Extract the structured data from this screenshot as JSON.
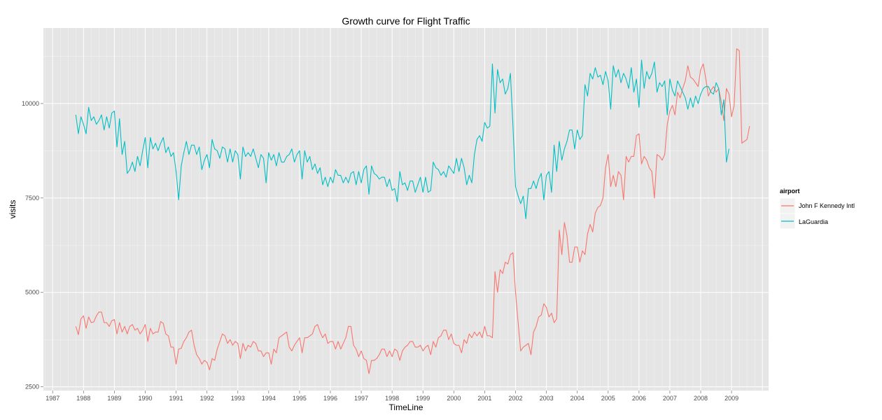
{
  "chart_data": {
    "type": "line",
    "title": "Growth curve for Flight Traffic",
    "xlabel": "TimeLine",
    "ylabel": "visits",
    "xlim": [
      1986.7,
      2010.2
    ],
    "ylim": [
      2400,
      12000
    ],
    "x_ticks": [
      1987,
      1988,
      1989,
      1990,
      1991,
      1992,
      1993,
      1994,
      1995,
      1996,
      1997,
      1998,
      1999,
      2000,
      2001,
      2002,
      2003,
      2004,
      2005,
      2006,
      2007,
      2008,
      2009
    ],
    "y_ticks": [
      2500,
      5000,
      7500,
      10000
    ],
    "grid": true,
    "legend": {
      "title": "airport",
      "position": "right"
    },
    "series": [
      {
        "name": "John F Kennedy Intl",
        "color": "#F8766D",
        "x_start": 1987.75,
        "step": 0.0833333,
        "values": [
          4100,
          3880,
          4300,
          4380,
          4050,
          4350,
          4200,
          4220,
          4380,
          4480,
          4480,
          4200,
          4200,
          4100,
          4250,
          4280,
          3900,
          4200,
          3950,
          4100,
          3900,
          4100,
          4150,
          4000,
          4050,
          3900,
          4000,
          4150,
          3700,
          4050,
          3900,
          3950,
          3950,
          4230,
          4180,
          3900,
          3850,
          3550,
          3550,
          3100,
          3500,
          3520,
          3700,
          3800,
          3950,
          4000,
          3600,
          3350,
          3250,
          3100,
          3200,
          3150,
          2950,
          3250,
          3200,
          3500,
          3700,
          3900,
          3850,
          3650,
          3750,
          3600,
          3700,
          3650,
          3250,
          3650,
          3450,
          3600,
          3550,
          3700,
          3650,
          3450,
          3450,
          3300,
          3400,
          3400,
          3100,
          3500,
          3400,
          3800,
          3850,
          3900,
          3950,
          3550,
          3450,
          3600,
          3700,
          3800,
          3400,
          3800,
          3800,
          3850,
          3900,
          4100,
          4150,
          3950,
          3800,
          3900,
          3650,
          3700,
          3700,
          3500,
          3700,
          3500,
          3650,
          3800,
          4100,
          4100,
          3600,
          3500,
          3300,
          3450,
          3250,
          3200,
          2850,
          3200,
          3200,
          3250,
          3350,
          3500,
          3500,
          3300,
          3450,
          3300,
          3500,
          3450,
          3200,
          3450,
          3550,
          3600,
          3700,
          3700,
          3550,
          3550,
          3600,
          3450,
          3550,
          3600,
          3350,
          3700,
          3550,
          3800,
          3850,
          4000,
          4000,
          3750,
          3900,
          3650,
          3600,
          3600,
          3400,
          3750,
          3650,
          3900,
          3800,
          3950,
          3850,
          3950,
          3800,
          4100,
          3850,
          3850,
          3800,
          5550,
          5000,
          5600,
          5500,
          5800,
          5750,
          6000,
          6050,
          5000,
          4200,
          3450,
          3550,
          3600,
          3650,
          3350,
          3950,
          4100,
          4350,
          4400,
          4700,
          4600,
          4350,
          4450,
          4200,
          4300,
          6650,
          6000,
          6850,
          6500,
          5800,
          5800,
          6200,
          6200,
          5800,
          6100,
          6000,
          6550,
          6800,
          6600,
          7100,
          7250,
          7300,
          7500,
          8300,
          8650,
          7800,
          8100,
          7800,
          8200,
          8100,
          7450,
          8600,
          8450,
          8600,
          8600,
          9150,
          9200,
          8400,
          8600,
          8500,
          8300,
          8200,
          7500,
          8650,
          8600,
          8500,
          8650,
          9450,
          9800,
          9950,
          9700,
          10300,
          10150,
          10400,
          10600,
          11000,
          10700,
          10650,
          10550,
          10450,
          10900,
          11050,
          10650,
          10200,
          10350,
          10450,
          10300,
          10400,
          10050,
          9550,
          10400,
          10250,
          9650,
          9950,
          11450,
          11400,
          8950,
          9000,
          9050,
          9400
        ]
      },
      {
        "name": "LaGuardia",
        "color": "#00BFC4",
        "x_start": 1987.75,
        "step": 0.0833333,
        "values": [
          9700,
          9200,
          9650,
          9450,
          9200,
          9900,
          9550,
          9650,
          9450,
          9550,
          9700,
          9300,
          9650,
          9350,
          9750,
          9800,
          8850,
          9600,
          8650,
          9000,
          8150,
          8250,
          8450,
          8200,
          8600,
          8350,
          8750,
          9100,
          8300,
          9100,
          8800,
          8950,
          8750,
          8950,
          9100,
          8700,
          8850,
          8600,
          8700,
          8200,
          7450,
          8350,
          8700,
          9000,
          8650,
          8900,
          8900,
          8650,
          8850,
          8250,
          8500,
          8650,
          8300,
          9050,
          8800,
          8750,
          8550,
          8850,
          8800,
          8450,
          8800,
          8450,
          8750,
          8650,
          8000,
          8850,
          8600,
          8700,
          8600,
          8800,
          8550,
          8300,
          8650,
          8550,
          7900,
          8700,
          8500,
          8650,
          8350,
          8700,
          8450,
          8450,
          8600,
          8650,
          8800,
          8450,
          8650,
          8750,
          8000,
          8750,
          8450,
          8600,
          8250,
          8400,
          8150,
          8300,
          7850,
          8050,
          7800,
          8050,
          7900,
          8250,
          8100,
          8100,
          7900,
          8050,
          7900,
          8150,
          8200,
          7850,
          8200,
          7900,
          8250,
          8350,
          7600,
          8350,
          8150,
          8100,
          8000,
          8050,
          8050,
          7800,
          8000,
          7700,
          7750,
          7400,
          8200,
          7850,
          7900,
          7700,
          7950,
          7950,
          7650,
          7850,
          8050,
          7650,
          8050,
          7650,
          7700,
          8450,
          8300,
          8250,
          8100,
          8200,
          8050,
          8350,
          8250,
          8150,
          8550,
          8200,
          8550,
          8300,
          7850,
          8100,
          7900,
          8650,
          9050,
          9150,
          9000,
          9500,
          9350,
          9400,
          11050,
          9750,
          10900,
          10550,
          10650,
          10250,
          10400,
          10800,
          9400,
          7800,
          7550,
          7350,
          7550,
          6950,
          7750,
          7750,
          7950,
          7750,
          8000,
          8150,
          7450,
          8100,
          8200,
          7650,
          8900,
          8200,
          9000,
          8500,
          8800,
          9000,
          9300,
          9300,
          8800,
          9300,
          9050,
          9150,
          10500,
          10200,
          10800,
          10650,
          10950,
          10700,
          10750,
          10500,
          10850,
          10600,
          9850,
          11000,
          10700,
          10900,
          10550,
          10800,
          10650,
          10400,
          10950,
          10300,
          10650,
          9900,
          11150,
          10400,
          10850,
          10650,
          10800,
          11100,
          10300,
          10550,
          10450,
          10600,
          9700,
          10650,
          10350,
          10200,
          10600,
          10450,
          10300,
          10150,
          9850,
          10150,
          9900,
          10200,
          10000,
          10250,
          10400,
          10450,
          10450,
          10300,
          10250,
          10550,
          10400,
          9700,
          10100,
          8450,
          8800
        ]
      }
    ]
  }
}
